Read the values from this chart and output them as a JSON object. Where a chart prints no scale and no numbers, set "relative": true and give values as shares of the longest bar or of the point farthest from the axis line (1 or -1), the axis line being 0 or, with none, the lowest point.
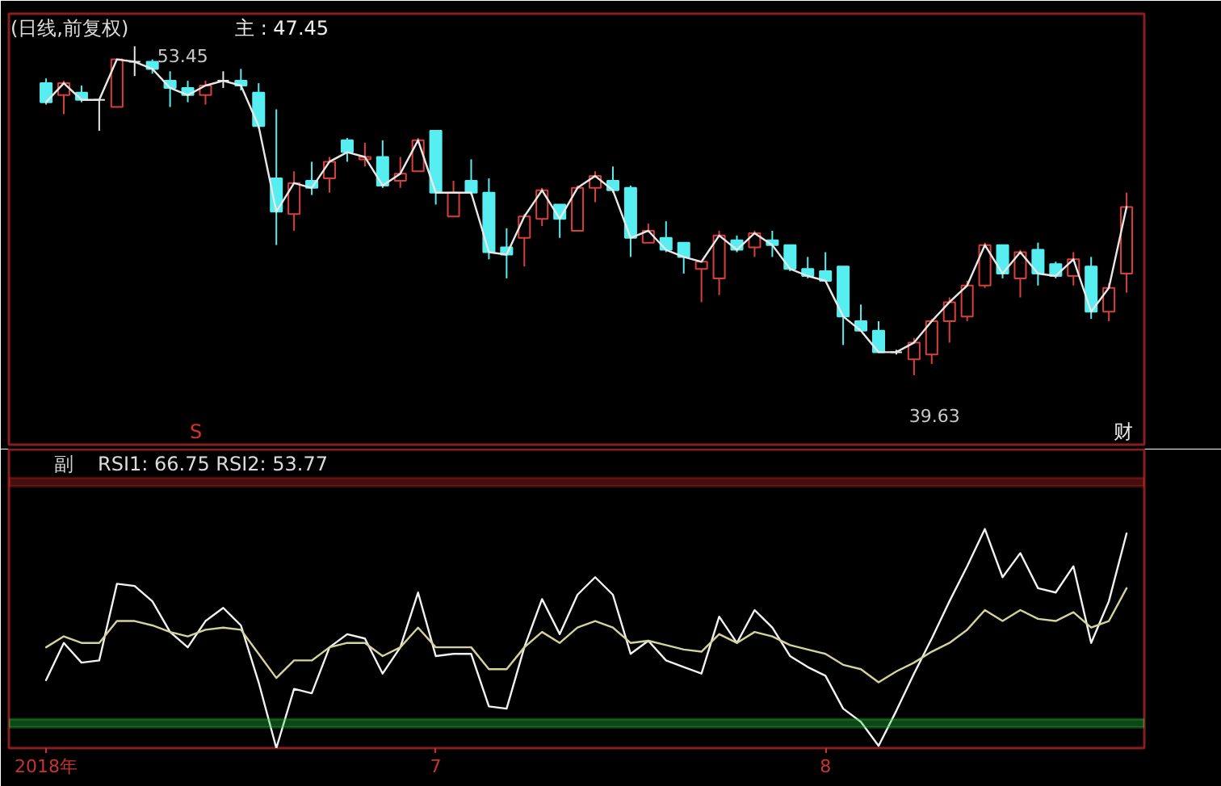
{
  "chart_data": [
    {
      "type": "candlestick",
      "title": "(日线,前复权)",
      "annotations": [
        "主 : 47.45",
        "53.45",
        "39.63",
        "S",
        "财"
      ],
      "categories": [
        null,
        null,
        null,
        null,
        null,
        null,
        null,
        null,
        null,
        null,
        null,
        null,
        null,
        null,
        null,
        null,
        null,
        null,
        null,
        null,
        null,
        null,
        null,
        null,
        null,
        null,
        null,
        null,
        null,
        null,
        null,
        null,
        null,
        null,
        null,
        null,
        null,
        null,
        null,
        null,
        null,
        null,
        null,
        null,
        null,
        null,
        null,
        null,
        null,
        null,
        null,
        null,
        null,
        null,
        null,
        null,
        null,
        null,
        null,
        null,
        null,
        null
      ],
      "tick_labels": false,
      "ohlc": [
        [
          51.9,
          52.1,
          51.0,
          51.1
        ],
        [
          51.4,
          52.0,
          50.6,
          51.9
        ],
        [
          51.5,
          51.8,
          51.1,
          51.2
        ],
        [
          51.2,
          51.2,
          49.9,
          51.2
        ],
        [
          50.9,
          52.9,
          50.9,
          52.9
        ],
        [
          52.8,
          53.45,
          52.2,
          52.8
        ],
        [
          52.8,
          52.9,
          52.3,
          52.5
        ],
        [
          52.0,
          52.4,
          50.9,
          51.7
        ],
        [
          51.7,
          52.0,
          51.1,
          51.4
        ],
        [
          51.4,
          52.0,
          51.0,
          51.8
        ],
        [
          52.0,
          52.4,
          51.7,
          52.0
        ],
        [
          52.0,
          52.5,
          51.6,
          51.8
        ],
        [
          51.5,
          51.9,
          50.0,
          50.1
        ],
        [
          47.9,
          50.8,
          45.1,
          46.5
        ],
        [
          46.4,
          48.2,
          45.7,
          47.7
        ],
        [
          47.8,
          48.6,
          47.2,
          47.5
        ],
        [
          47.9,
          48.8,
          47.3,
          48.6
        ],
        [
          49.5,
          49.6,
          48.6,
          49.0
        ],
        [
          48.7,
          49.4,
          48.4,
          48.8
        ],
        [
          48.8,
          49.5,
          47.5,
          47.6
        ],
        [
          47.8,
          48.8,
          47.5,
          48.1
        ],
        [
          48.2,
          49.6,
          48.2,
          49.5
        ],
        [
          49.9,
          49.9,
          46.8,
          47.3
        ],
        [
          46.3,
          47.8,
          46.3,
          47.3
        ],
        [
          47.8,
          48.7,
          47.2,
          47.3
        ],
        [
          47.3,
          47.9,
          44.5,
          44.8
        ],
        [
          45.0,
          45.8,
          43.7,
          44.7
        ],
        [
          45.4,
          46.4,
          44.2,
          46.3
        ],
        [
          46.2,
          47.5,
          45.9,
          47.4
        ],
        [
          46.8,
          46.8,
          45.4,
          46.2
        ],
        [
          45.7,
          47.6,
          45.7,
          47.5
        ],
        [
          47.5,
          48.2,
          46.9,
          48.0
        ],
        [
          47.8,
          48.4,
          47.3,
          47.4
        ],
        [
          47.5,
          47.6,
          44.6,
          45.4
        ],
        [
          45.2,
          46.0,
          45.2,
          45.7
        ],
        [
          45.4,
          46.1,
          44.8,
          44.9
        ],
        [
          45.2,
          45.2,
          43.9,
          44.6
        ],
        [
          44.1,
          44.4,
          42.7,
          44.4
        ],
        [
          43.7,
          45.7,
          43.0,
          45.5
        ],
        [
          45.3,
          45.5,
          44.8,
          44.9
        ],
        [
          45.0,
          45.7,
          44.6,
          45.6
        ],
        [
          45.3,
          45.7,
          44.6,
          45.1
        ],
        [
          45.1,
          45.1,
          44.0,
          44.1
        ],
        [
          44.1,
          44.6,
          43.7,
          43.8
        ],
        [
          44.0,
          44.8,
          43.6,
          43.6
        ],
        [
          44.2,
          44.2,
          40.9,
          42.1
        ],
        [
          41.9,
          42.6,
          41.5,
          41.5
        ],
        [
          41.5,
          41.9,
          40.6,
          40.6
        ],
        [
          40.6,
          40.7,
          40.5,
          40.6
        ],
        [
          40.3,
          41.2,
          39.63,
          41.0
        ],
        [
          40.5,
          42.0,
          40.1,
          41.9
        ],
        [
          41.9,
          42.9,
          41.0,
          42.7
        ],
        [
          42.1,
          43.6,
          41.9,
          43.4
        ],
        [
          43.4,
          45.2,
          43.3,
          45.1
        ],
        [
          45.1,
          45.1,
          43.7,
          43.9
        ],
        [
          43.7,
          44.9,
          42.9,
          44.8
        ],
        [
          44.9,
          45.2,
          43.4,
          43.9
        ],
        [
          44.3,
          44.4,
          43.7,
          43.8
        ],
        [
          43.8,
          44.8,
          43.4,
          44.5
        ],
        [
          44.2,
          44.6,
          42.0,
          42.3
        ],
        [
          42.3,
          43.5,
          41.9,
          43.3
        ],
        [
          43.9,
          47.3,
          43.1,
          46.7
        ]
      ],
      "colors": [
        "#56eef0",
        "#d8403c",
        "#56eef0",
        "#e6e6e6",
        "#d8403c",
        "#e6e6e6",
        "#56eef0",
        "#56eef0",
        "#56eef0",
        "#d8403c",
        "#e6e6e6",
        "#56eef0",
        "#56eef0",
        "#56eef0",
        "#d8403c",
        "#56eef0",
        "#d8403c",
        "#56eef0",
        "#d8403c",
        "#56eef0",
        "#d8403c",
        "#d8403c",
        "#56eef0",
        "#d8403c",
        "#56eef0",
        "#56eef0",
        "#56eef0",
        "#d8403c",
        "#d8403c",
        "#56eef0",
        "#d8403c",
        "#d8403c",
        "#56eef0",
        "#56eef0",
        "#d8403c",
        "#56eef0",
        "#56eef0",
        "#d8403c",
        "#d8403c",
        "#56eef0",
        "#d8403c",
        "#56eef0",
        "#56eef0",
        "#56eef0",
        "#56eef0",
        "#56eef0",
        "#56eef0",
        "#56eef0",
        "#e6e6e6",
        "#d8403c",
        "#d8403c",
        "#d8403c",
        "#d8403c",
        "#d8403c",
        "#56eef0",
        "#d8403c",
        "#56eef0",
        "#56eef0",
        "#d8403c",
        "#56eef0",
        "#d8403c",
        "#d8403c"
      ],
      "series": [
        {
          "type": "line",
          "color": "#e8e8e8",
          "values": [
            51.1,
            51.9,
            51.2,
            51.2,
            52.9,
            52.8,
            52.5,
            51.7,
            51.4,
            51.8,
            52.0,
            51.8,
            50.1,
            46.5,
            47.7,
            47.5,
            48.6,
            49.0,
            48.8,
            47.6,
            48.1,
            49.5,
            47.3,
            47.3,
            47.3,
            44.8,
            44.7,
            46.3,
            47.4,
            46.2,
            47.5,
            48.0,
            47.4,
            45.4,
            45.7,
            44.9,
            44.6,
            44.4,
            45.5,
            44.9,
            45.6,
            45.1,
            44.1,
            43.8,
            43.6,
            42.1,
            41.5,
            40.6,
            40.6,
            41.0,
            41.9,
            42.7,
            43.4,
            45.1,
            43.9,
            44.8,
            43.9,
            43.8,
            44.5,
            42.3,
            43.3,
            46.7
          ]
        }
      ]
    },
    {
      "type": "line",
      "title": "RSI1: 66.75 RSI2: 53.77",
      "annotations": [
        "副"
      ],
      "categories": [
        "2018年",
        null,
        null,
        null,
        null,
        null,
        null,
        null,
        null,
        null,
        null,
        null,
        null,
        null,
        null,
        null,
        null,
        null,
        null,
        null,
        null,
        null,
        "7",
        null,
        null,
        null,
        null,
        null,
        null,
        null,
        null,
        null,
        null,
        null,
        null,
        null,
        null,
        null,
        null,
        null,
        null,
        null,
        null,
        null,
        "8",
        null,
        null,
        null,
        null,
        null,
        null,
        null,
        null,
        null,
        null,
        null,
        null,
        null,
        null,
        null,
        null,
        null
      ],
      "tick_labels": "x",
      "relative": true,
      "series": [
        {
          "color": "#f2f2f2",
          "values": [
            0.31,
            0.48,
            0.39,
            0.4,
            0.75,
            0.74,
            0.67,
            0.53,
            0.46,
            0.58,
            0.64,
            0.56,
            0.3,
            0,
            0.27,
            0.25,
            0.46,
            0.52,
            0.5,
            0.34,
            0.46,
            0.71,
            0.42,
            0.43,
            0.43,
            0.19,
            0.18,
            0.46,
            0.68,
            0.52,
            0.7,
            0.78,
            0.7,
            0.43,
            0.49,
            0.4,
            0.37,
            0.34,
            0.6,
            0.48,
            0.63,
            0.55,
            0.42,
            0.37,
            0.33,
            0.18,
            0.12,
            0.01,
            0.17,
            0.34,
            0.5,
            0.67,
            0.83,
            1,
            0.78,
            0.89,
            0.73,
            0.71,
            0.83,
            0.48,
            0.67,
            0.98
          ]
        },
        {
          "color": "#d6d29c",
          "values": [
            0.46,
            0.51,
            0.48,
            0.48,
            0.58,
            0.58,
            0.56,
            0.53,
            0.51,
            0.54,
            0.55,
            0.54,
            0.43,
            0.32,
            0.4,
            0.4,
            0.46,
            0.48,
            0.48,
            0.42,
            0.46,
            0.55,
            0.46,
            0.46,
            0.46,
            0.36,
            0.36,
            0.46,
            0.53,
            0.48,
            0.55,
            0.58,
            0.55,
            0.48,
            0.49,
            0.47,
            0.45,
            0.44,
            0.52,
            0.48,
            0.53,
            0.51,
            0.47,
            0.45,
            0.43,
            0.38,
            0.36,
            0.3,
            0.35,
            0.39,
            0.44,
            0.48,
            0.54,
            0.63,
            0.58,
            0.63,
            0.59,
            0.58,
            0.62,
            0.55,
            0.58,
            0.73
          ]
        }
      ],
      "bands": [
        {
          "axis": "y",
          "from": 1.195,
          "to": 1.233,
          "color": "#c8282c"
        },
        {
          "axis": "y",
          "from": 0.095,
          "to": 0.132,
          "color": "#2cc83c"
        }
      ]
    }
  ]
}
